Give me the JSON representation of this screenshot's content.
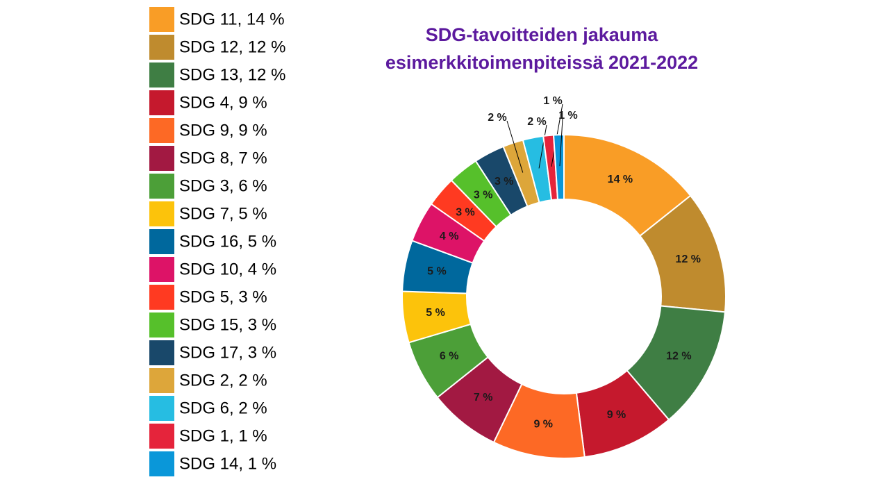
{
  "chart_data": {
    "type": "donut",
    "title": [
      "SDG-tavoitteiden jakauma",
      "esimerkkitoimenpiteissä 2021-2022"
    ],
    "categories": [
      "SDG 11, 14 %",
      "SDG 12, 12 %",
      "SDG 13, 12 %",
      "SDG 4, 9 %",
      "SDG 9, 9 %",
      "SDG 8, 7 %",
      "SDG 3, 6 %",
      "SDG 7, 5 %",
      "SDG 16, 5 %",
      "SDG 10, 4 %",
      "SDG 5, 3 %",
      "SDG 15, 3 %",
      "SDG 17, 3 %",
      "SDG 2, 2 %",
      "SDG 6, 2 %",
      "SDG 1, 1 %",
      "SDG 14, 1 %"
    ],
    "values": [
      14,
      12,
      12,
      9,
      9,
      7,
      6,
      5,
      5,
      4,
      3,
      3,
      3,
      2,
      2,
      1,
      1
    ],
    "value_labels": [
      "14 %",
      "12 %",
      "12 %",
      "9 %",
      "9 %",
      "7 %",
      "6 %",
      "5 %",
      "5 %",
      "4 %",
      "3 %",
      "3 %",
      "3 %",
      "2 %",
      "2 %",
      "1 %",
      "1 %"
    ],
    "colors": [
      "#f99d26",
      "#bf8b2e",
      "#3f7e44",
      "#c5192d",
      "#fd6925",
      "#a21942",
      "#4c9f38",
      "#fcc30b",
      "#00689d",
      "#dd1367",
      "#ff3a21",
      "#56c02b",
      "#19486a",
      "#dda63a",
      "#26bde2",
      "#e5243b",
      "#0a97d9"
    ]
  }
}
